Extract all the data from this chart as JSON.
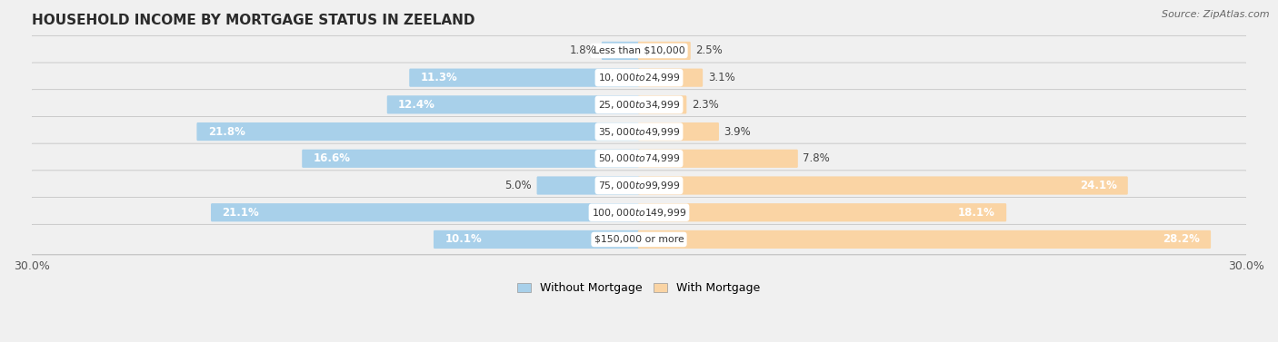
{
  "title": "HOUSEHOLD INCOME BY MORTGAGE STATUS IN ZEELAND",
  "source": "Source: ZipAtlas.com",
  "categories": [
    "Less than $10,000",
    "$10,000 to $24,999",
    "$25,000 to $34,999",
    "$35,000 to $49,999",
    "$50,000 to $74,999",
    "$75,000 to $99,999",
    "$100,000 to $149,999",
    "$150,000 or more"
  ],
  "without_mortgage": [
    1.8,
    11.3,
    12.4,
    21.8,
    16.6,
    5.0,
    21.1,
    10.1
  ],
  "with_mortgage": [
    2.5,
    3.1,
    2.3,
    3.9,
    7.8,
    24.1,
    18.1,
    28.2
  ],
  "color_without": "#7DB8DC",
  "color_with": "#F5B96E",
  "color_without_light": "#A8D0EA",
  "color_with_light": "#FAD4A4",
  "row_bg": "#EAEAEA",
  "row_border": "#CCCCCC",
  "max_val": 30.0,
  "legend_without": "Without Mortgage",
  "legend_with": "With Mortgage",
  "title_fontsize": 11,
  "source_fontsize": 8,
  "bar_label_fontsize": 8.5,
  "category_fontsize": 7.8,
  "fig_bg": "#F0F0F0"
}
